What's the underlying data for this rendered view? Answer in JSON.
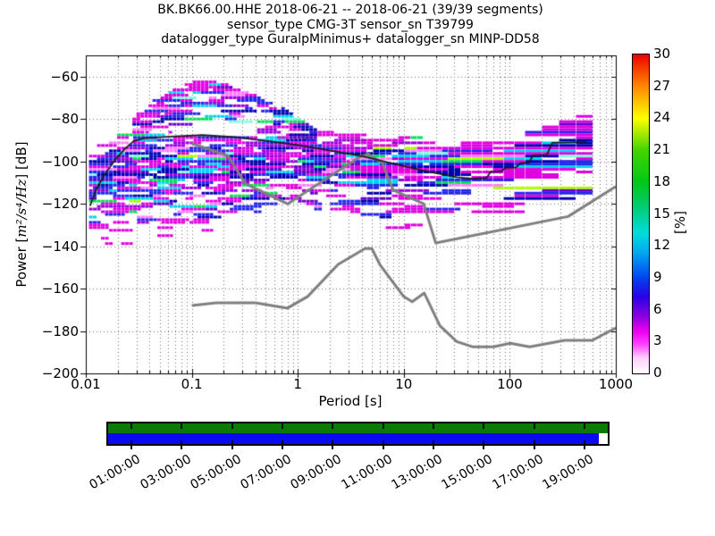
{
  "header": {
    "line1": "BK.BK66.00.HHE   2018-06-21 -- 2018-06-21  (39/39 segments)",
    "line2": "sensor_type CMG-3T sensor_sn T39799",
    "line3": "datalogger_type GuralpMinimus+ datalogger_sn MINP-DD58"
  },
  "chart_data": {
    "type": "heatmap",
    "subtype": "ppsd-probabilistic-power-spectral-density",
    "xlabel": "Period [s]",
    "ylabel_pre": "Power [",
    "ylabel_math": "m²/s⁴/Hz",
    "ylabel_post": "] [dB]",
    "x_scale": "log",
    "xlim": [
      0.01,
      1000
    ],
    "ylim": [
      -200,
      -50
    ],
    "grid": true,
    "xticks": [
      0.01,
      0.1,
      1,
      10,
      100,
      1000
    ],
    "xtick_labels": [
      "0.01",
      "0.1",
      "1",
      "10",
      "100",
      "1000"
    ],
    "yticks": [
      -60,
      -80,
      -100,
      -120,
      -140,
      -160,
      -180,
      -200
    ],
    "ytick_labels": [
      "−60",
      "−80",
      "−100",
      "−120",
      "−140",
      "−160",
      "−180",
      "−200"
    ],
    "colorbar": {
      "label": "[%]",
      "lim": [
        0,
        30
      ],
      "ticks": [
        0,
        3,
        6,
        9,
        12,
        15,
        18,
        21,
        24,
        27,
        30
      ],
      "tick_labels": [
        "0",
        "3",
        "6",
        "9",
        "12",
        "15",
        "18",
        "21",
        "24",
        "27",
        "30"
      ],
      "stops": [
        [
          "#ffffff",
          0
        ],
        [
          "#ffccff",
          0.05
        ],
        [
          "#ff44ff",
          0.09
        ],
        [
          "#ee00ee",
          0.13
        ],
        [
          "#8800e0",
          0.18
        ],
        [
          "#2a00e8",
          0.24
        ],
        [
          "#0044f0",
          0.3
        ],
        [
          "#00aaee",
          0.38
        ],
        [
          "#00dcdc",
          0.44
        ],
        [
          "#00cc77",
          0.52
        ],
        [
          "#00c818",
          0.6
        ],
        [
          "#44d400",
          0.7
        ],
        [
          "#ffff00",
          0.8
        ],
        [
          "#ff8800",
          0.9
        ],
        [
          "#ee0000",
          1.0
        ]
      ]
    },
    "noise_models": {
      "nlnm_period_db": [
        [
          0.1,
          -168.0
        ],
        [
          0.17,
          -166.7
        ],
        [
          0.4,
          -166.7
        ],
        [
          0.8,
          -169.2
        ],
        [
          1.24,
          -163.7
        ],
        [
          2.4,
          -148.6
        ],
        [
          4.3,
          -141.1
        ],
        [
          5.0,
          -141.1
        ],
        [
          6.0,
          -149.0
        ],
        [
          10.0,
          -163.8
        ],
        [
          12.0,
          -166.2
        ],
        [
          15.6,
          -162.1
        ],
        [
          21.9,
          -177.5
        ],
        [
          31.6,
          -185.0
        ],
        [
          45.0,
          -187.5
        ],
        [
          70.0,
          -187.5
        ],
        [
          101.0,
          -185.8
        ],
        [
          154.0,
          -187.5
        ],
        [
          328.0,
          -184.4
        ],
        [
          600.0,
          -184.4
        ],
        [
          1000.0,
          -178.5
        ]
      ],
      "nhnm_period_db": [
        [
          0.1,
          -91.5
        ],
        [
          0.22,
          -97.4
        ],
        [
          0.32,
          -110.5
        ],
        [
          0.8,
          -120.0
        ],
        [
          3.8,
          -98.0
        ],
        [
          4.6,
          -96.5
        ],
        [
          6.3,
          -101.0
        ],
        [
          7.9,
          -113.5
        ],
        [
          15.4,
          -120.0
        ],
        [
          20.0,
          -138.5
        ],
        [
          354.8,
          -126.0
        ],
        [
          1000.0,
          -111.8
        ]
      ],
      "color": "#7f7f7f"
    },
    "mode_line_logp_db": [
      [
        -1.96,
        -121
      ],
      [
        -1.9,
        -113
      ],
      [
        -1.82,
        -106
      ],
      [
        -1.72,
        -99
      ],
      [
        -1.63,
        -94
      ],
      [
        -1.55,
        -90.5
      ],
      [
        -1.45,
        -89
      ],
      [
        -1.2,
        -88.3
      ],
      [
        -0.9,
        -87.6
      ],
      [
        -0.6,
        -88.5
      ],
      [
        -0.3,
        -90.3
      ],
      [
        0,
        -92.3
      ],
      [
        0.3,
        -94.8
      ],
      [
        0.6,
        -97.5
      ],
      [
        0.9,
        -101
      ],
      [
        1.2,
        -104.5
      ],
      [
        1.5,
        -107.5
      ],
      [
        1.65,
        -108.2
      ],
      [
        1.78,
        -107.8
      ],
      [
        1.82,
        -104.9
      ],
      [
        1.92,
        -104.7
      ],
      [
        1.96,
        -103.0
      ],
      [
        2.06,
        -102.8
      ],
      [
        2.1,
        -100.8
      ],
      [
        2.18,
        -100.6
      ],
      [
        2.22,
        -97.2
      ],
      [
        2.35,
        -96.9
      ],
      [
        2.4,
        -91.2
      ],
      [
        2.72,
        -90.8
      ]
    ],
    "mode_line_color": "#1a1a1a",
    "histogram": {
      "cloud_main": {
        "logp": [
          -1.97,
          -1.85,
          -1.7,
          -1.5,
          -1.2,
          -0.9,
          -0.6,
          -0.3,
          0,
          0.3,
          0.6,
          0.9,
          1.2,
          1.5,
          1.8,
          2.0,
          2.2,
          2.4,
          2.6,
          2.73
        ],
        "top": [
          -96,
          -90,
          -87,
          -86,
          -87,
          -88,
          -88,
          -87,
          -86,
          -86,
          -87,
          -88,
          -89,
          -90,
          -91,
          -89,
          -85,
          -81,
          -77,
          -75
        ],
        "bottom": [
          -133,
          -136,
          -135,
          -131,
          -129,
          -127,
          -125,
          -123,
          -122,
          -123,
          -126,
          -127,
          -123,
          -121,
          -120,
          -119,
          -117,
          -114,
          -111,
          -109
        ],
        "fringe_db": 6
      },
      "cloud_hump": {
        "logp": [
          -1.56,
          -1.4,
          -1.2,
          -1.0,
          -0.85,
          -0.7,
          -0.5,
          -0.3,
          -0.1,
          0.05,
          0.18
        ],
        "top": [
          -79,
          -72,
          -66,
          -62.5,
          -62,
          -63.5,
          -67,
          -71,
          -76,
          -81,
          -85
        ],
        "bottom": [
          -91,
          -89,
          -84,
          -80,
          -79,
          -81,
          -84,
          -88,
          -92,
          -95,
          -97
        ],
        "fringe_db": 2
      },
      "palette": [
        [
          "#e000e0",
          0.34
        ],
        [
          "#2525ea",
          0.24
        ],
        [
          "#9900dd",
          0.08
        ],
        [
          "#ff7dff",
          0.06
        ],
        [
          "#00d2f0",
          0.08
        ],
        [
          "#0000b2",
          0.08
        ],
        [
          "#6600cc",
          0.05
        ],
        [
          "#00e055",
          0.03
        ],
        [
          "#7dffd8",
          0.015
        ],
        [
          "#aaff00",
          0.01
        ]
      ],
      "seed": 20180621
    }
  },
  "timeline": {
    "available_color": "#0a7a0a",
    "used_color": "#0a0af0",
    "used_fraction": 0.982,
    "hours_span": [
      0,
      20
    ],
    "tick_hours": [
      1,
      3,
      5,
      7,
      9,
      11,
      13,
      15,
      17,
      19
    ],
    "tick_labels": [
      "01:00:00",
      "03:00:00",
      "05:00:00",
      "07:00:00",
      "09:00:00",
      "11:00:00",
      "13:00:00",
      "15:00:00",
      "17:00:00",
      "19:00:00"
    ]
  }
}
